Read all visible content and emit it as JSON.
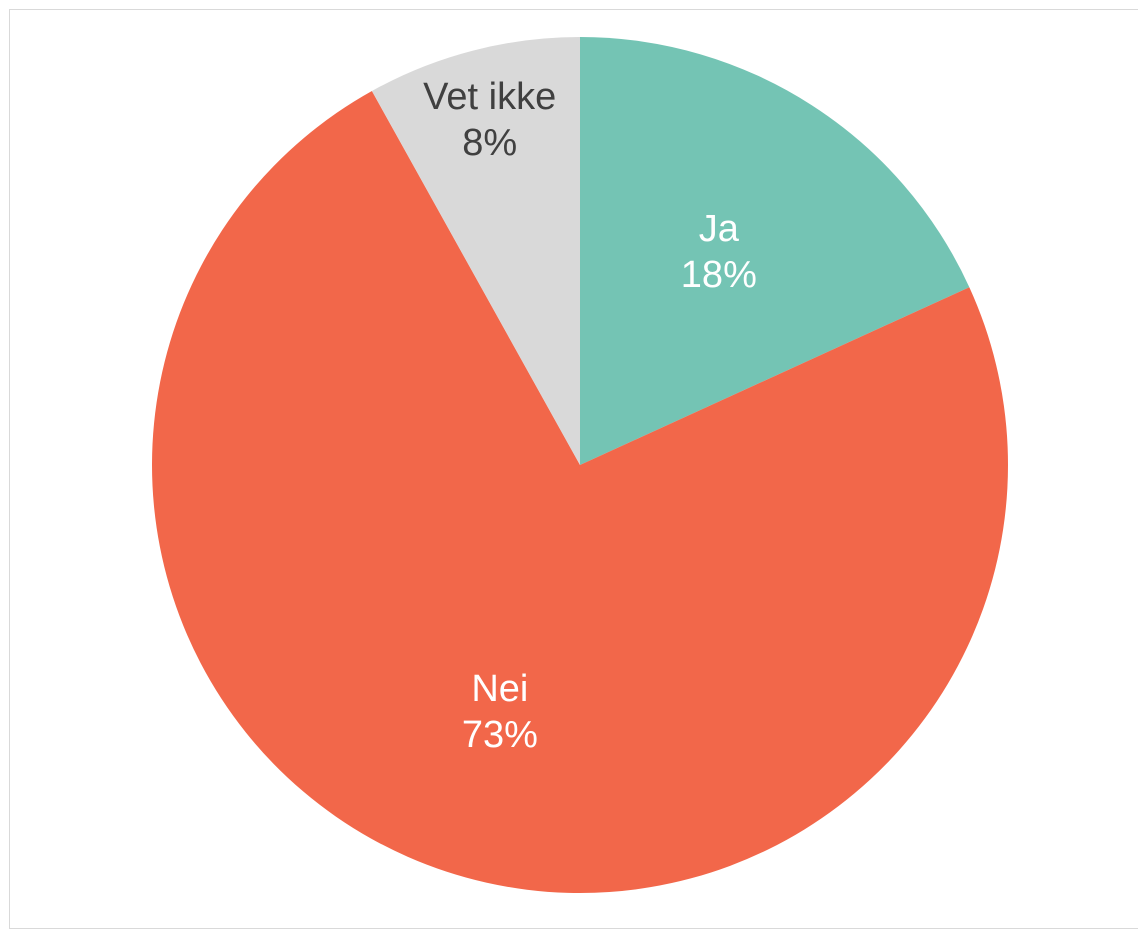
{
  "chart_data": {
    "type": "pie",
    "title": "",
    "slices": [
      {
        "label": "Ja",
        "value": 18,
        "value_label": "18%",
        "color": "#74c4b4",
        "label_color": "#ffffff"
      },
      {
        "label": "Nei",
        "value": 73,
        "value_label": "73%",
        "color": "#f2674a",
        "label_color": "#ffffff"
      },
      {
        "label": "Vet ikke",
        "value": 8,
        "value_label": "8%",
        "color": "#d9d9d9",
        "label_color": "#404040"
      }
    ],
    "start_angle_deg": 0,
    "direction": "clockwise"
  }
}
